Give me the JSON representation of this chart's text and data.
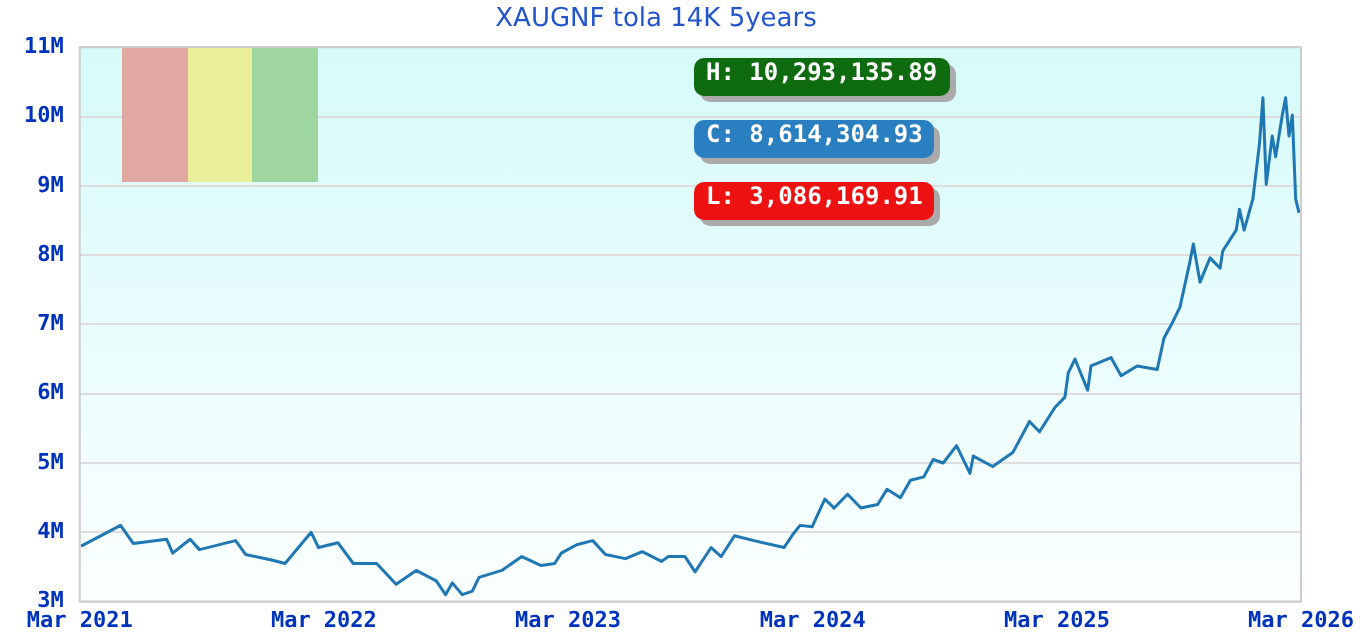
{
  "chart_data": {
    "type": "line",
    "title": "XAUGNF tola 14K 5years",
    "annotations": [
      "H: 10,293,135.89",
      "C: 8,614,304.93",
      "L: 3,086,169.91"
    ],
    "grid": "y",
    "legend": false,
    "marker": "none",
    "xlim": [
      "2021-03-01",
      "2026-03-01"
    ],
    "xticks": [
      {
        "value": "2021-03-01",
        "label": "Mar 2021"
      },
      {
        "value": "2022-03-01",
        "label": "Mar 2022"
      },
      {
        "value": "2023-03-01",
        "label": "Mar 2023"
      },
      {
        "value": "2024-03-01",
        "label": "Mar 2024"
      },
      {
        "value": "2025-03-01",
        "label": "Mar 2025"
      },
      {
        "value": "2026-03-01",
        "label": "Mar 2026"
      }
    ],
    "ylim": [
      3000000,
      11000000
    ],
    "yticks": [
      {
        "value": 3000000,
        "label": "3M"
      },
      {
        "value": 4000000,
        "label": "4M"
      },
      {
        "value": 5000000,
        "label": "5M"
      },
      {
        "value": 6000000,
        "label": "6M"
      },
      {
        "value": 7000000,
        "label": "7M"
      },
      {
        "value": 8000000,
        "label": "8M"
      },
      {
        "value": 9000000,
        "label": "9M"
      },
      {
        "value": 10000000,
        "label": "10M"
      },
      {
        "value": 11000000,
        "label": "11M"
      }
    ],
    "series": [
      {
        "color": "#1f78b4",
        "x": [
          "2021-03-03",
          "2021-05-01",
          "2021-05-20",
          "2021-07-09",
          "2021-07-18",
          "2021-08-13",
          "2021-08-27",
          "2021-10-20",
          "2021-11-04",
          "2021-12-13",
          "2022-01-02",
          "2022-02-10",
          "2022-02-21",
          "2022-03-22",
          "2022-04-14",
          "2022-05-19",
          "2022-06-17",
          "2022-07-17",
          "2022-08-16",
          "2022-08-30",
          "2022-09-09",
          "2022-09-24",
          "2022-10-09",
          "2022-10-19",
          "2022-11-22",
          "2022-12-22",
          "2023-01-20",
          "2023-02-09",
          "2023-02-19",
          "2023-03-14",
          "2023-04-07",
          "2023-04-26",
          "2023-05-26",
          "2023-06-20",
          "2023-07-19",
          "2023-07-29",
          "2023-08-23",
          "2023-09-07",
          "2023-10-01",
          "2023-10-16",
          "2023-11-05",
          "2023-12-04",
          "2024-01-18",
          "2024-02-01",
          "2024-02-11",
          "2024-02-29",
          "2024-03-19",
          "2024-04-02",
          "2024-04-22",
          "2024-05-12",
          "2024-06-06",
          "2024-06-20",
          "2024-07-10",
          "2024-07-25",
          "2024-08-14",
          "2024-08-28",
          "2024-09-12",
          "2024-10-02",
          "2024-10-22",
          "2024-10-27",
          "2024-11-25",
          "2024-12-25",
          "2025-01-19",
          "2025-02-03",
          "2025-02-26",
          "2025-03-13",
          "2025-03-18",
          "2025-03-28",
          "2025-04-16",
          "2025-04-21",
          "2025-05-21",
          "2025-06-05",
          "2025-06-29",
          "2025-07-29",
          "2025-08-08",
          "2025-08-22",
          "2025-09-01",
          "2025-09-16",
          "2025-09-21",
          "2025-10-01",
          "2025-10-16",
          "2025-10-31",
          "2025-11-04",
          "2025-11-24",
          "2025-11-29",
          "2025-12-06",
          "2025-12-19",
          "2025-12-29",
          "2026-01-03",
          "2026-01-08",
          "2026-01-17",
          "2026-01-22",
          "2026-02-01",
          "2026-02-06",
          "2026-02-11",
          "2026-02-16",
          "2026-02-21",
          "2026-02-26"
        ],
        "values": [
          3800000,
          4100000,
          3840000,
          3900000,
          3700000,
          3900000,
          3750000,
          3880000,
          3680000,
          3600000,
          3550000,
          4000000,
          3780000,
          3850000,
          3550000,
          3550000,
          3250000,
          3450000,
          3300000,
          3100000,
          3270000,
          3100000,
          3150000,
          3350000,
          3450000,
          3650000,
          3520000,
          3550000,
          3700000,
          3820000,
          3880000,
          3680000,
          3620000,
          3720000,
          3580000,
          3650000,
          3650000,
          3430000,
          3780000,
          3650000,
          3950000,
          3880000,
          3780000,
          3980000,
          4100000,
          4080000,
          4480000,
          4350000,
          4550000,
          4350000,
          4400000,
          4620000,
          4500000,
          4750000,
          4800000,
          5050000,
          5000000,
          5250000,
          4850000,
          5100000,
          4950000,
          5150000,
          5600000,
          5450000,
          5800000,
          5950000,
          6300000,
          6500000,
          6050000,
          6400000,
          6520000,
          6260000,
          6400000,
          6350000,
          6800000,
          7050000,
          7250000,
          7910000,
          8160000,
          7610000,
          7960000,
          7810000,
          8060000,
          8360000,
          8660000,
          8360000,
          8810000,
          9620000,
          10270000,
          9020000,
          9720000,
          9420000,
          10020000,
          10270000,
          9720000,
          10020000,
          8810000,
          8610000
        ]
      }
    ]
  }
}
